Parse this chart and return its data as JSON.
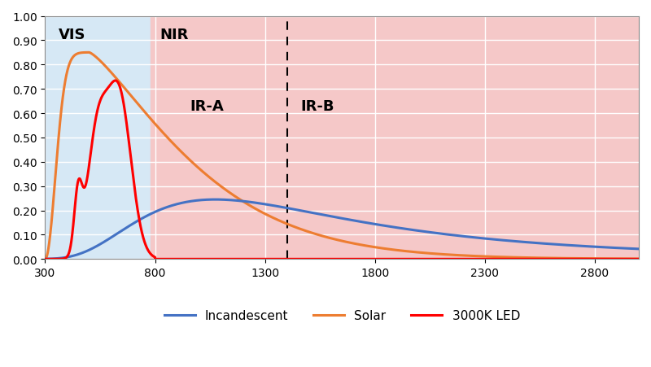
{
  "xlim": [
    300,
    3000
  ],
  "ylim": [
    0.0,
    1.0
  ],
  "xticks": [
    300,
    800,
    1300,
    1800,
    2300,
    2800
  ],
  "yticks": [
    0.0,
    0.1,
    0.2,
    0.3,
    0.4,
    0.5,
    0.6,
    0.7,
    0.8,
    0.9,
    1.0
  ],
  "vis_region": [
    300,
    780
  ],
  "nir_region": [
    780,
    3000
  ],
  "dashed_line_x": 1400,
  "vis_color": "#d6e8f5",
  "nir_color": "#f5c8c8",
  "label_VIS": [
    360,
    0.955
  ],
  "label_NIR": [
    820,
    0.955
  ],
  "label_IRA": [
    960,
    0.66
  ],
  "label_IRB": [
    1460,
    0.66
  ],
  "incandescent_color": "#4472C4",
  "solar_color": "#ED7D31",
  "led_color": "#FF0000",
  "legend_labels": [
    "Incandescent",
    "Solar",
    "3000K LED"
  ],
  "fontsize_labels": 13,
  "fontsize_ticks": 10,
  "grid_color": "#FFFFFF",
  "grid_linewidth": 1.0
}
